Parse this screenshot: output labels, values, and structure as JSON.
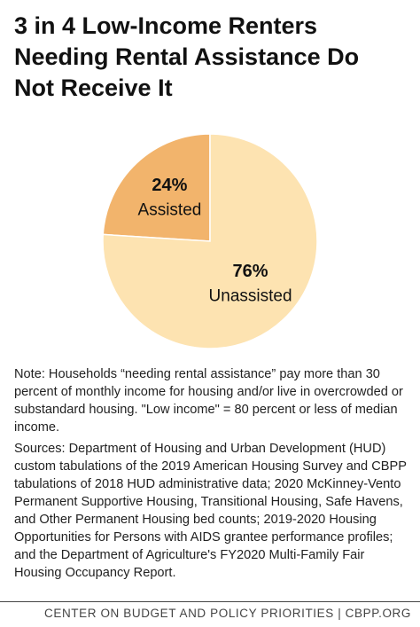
{
  "chart_data": {
    "type": "pie",
    "title": "3 in 4 Low-Income Renters Needing Rental Assistance Do Not Receive It",
    "categories": [
      "Assisted",
      "Unassisted"
    ],
    "values": [
      24,
      76
    ],
    "value_labels": [
      "24%",
      "76%"
    ],
    "colors": [
      "#f2b46c",
      "#fde3b1"
    ],
    "note": "Note: Households “needing rental assistance” pay more than 30 percent of monthly income for housing and/or live in overcrowded or substandard housing. \"Low income\" = 80 percent or less of median income.",
    "sources": "Sources: Department of Housing and Urban Development (HUD) custom tabulations of the 2019 American Housing Survey and CBPP tabulations of 2018 HUD administrative data; 2020 McKinney-Vento Permanent Supportive Housing, Transitional Housing, Safe Havens, and Other Permanent Housing bed counts; 2019-2020 Housing Opportunities for Persons with AIDS grantee performance profiles; and the Department of Agriculture's FY2020 Multi-Family Fair Housing Occupancy Report.",
    "footer": "CENTER ON BUDGET AND POLICY PRIORITIES | CBPP.ORG"
  }
}
